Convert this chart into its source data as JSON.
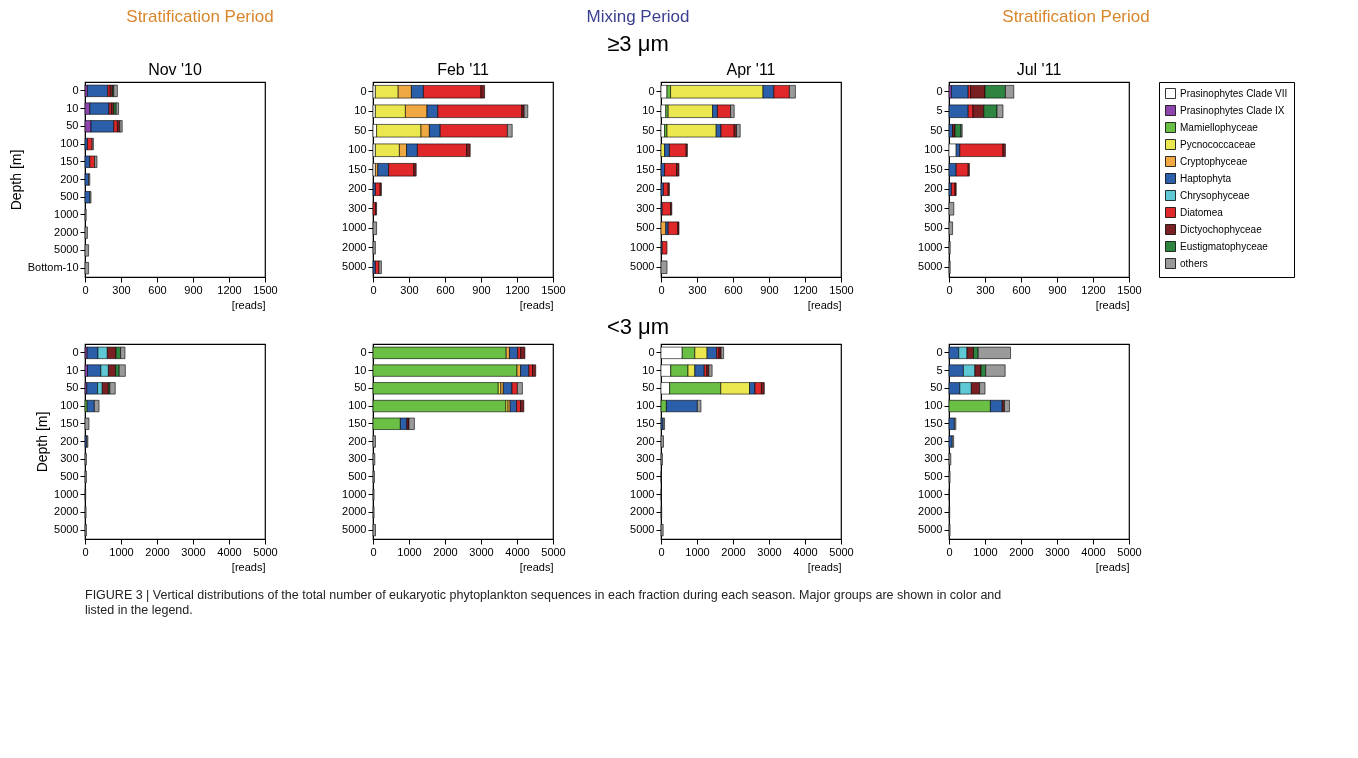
{
  "chart_data": [
    {
      "type": "bar",
      "orientation": "horizontal",
      "stacked": true,
      "title": "Nov '10",
      "annotations": [
        "Stratification Period"
      ],
      "ylabel": "Depth [m]",
      "xlabel": "[reads]",
      "xlim": [
        0,
        1500
      ],
      "xticks": [
        0,
        300,
        600,
        900,
        1200,
        1500
      ],
      "categories": [
        "0",
        "10",
        "50",
        "100",
        "150",
        "200",
        "500",
        "1000",
        "2000",
        "5000",
        "Bottom-10"
      ],
      "series": [
        {
          "color": "#8e44ad",
          "values": [
            20,
            40,
            50,
            0,
            0,
            0,
            0,
            0,
            0,
            0,
            0
          ]
        },
        {
          "color": "#2c5faa",
          "values": [
            170,
            160,
            190,
            20,
            40,
            30,
            40,
            0,
            0,
            0,
            0
          ]
        },
        {
          "color": "#e0282a",
          "values": [
            20,
            20,
            30,
            40,
            40,
            0,
            0,
            0,
            0,
            0,
            0
          ]
        },
        {
          "color": "#7a1f22",
          "values": [
            20,
            20,
            20,
            0,
            0,
            0,
            0,
            0,
            0,
            0,
            0
          ]
        },
        {
          "color": "#2e8540",
          "values": [
            10,
            20,
            0,
            0,
            0,
            0,
            0,
            0,
            0,
            0,
            0
          ]
        },
        {
          "color": "#9a9a9a",
          "values": [
            30,
            20,
            20,
            10,
            20,
            10,
            10,
            10,
            20,
            30,
            30
          ]
        }
      ]
    },
    {
      "type": "bar",
      "orientation": "horizontal",
      "stacked": true,
      "title": "Feb '11",
      "annotations": [
        "Mixing Period"
      ],
      "xlabel": "[reads]",
      "xlim": [
        0,
        1500
      ],
      "xticks": [
        0,
        300,
        600,
        900,
        1200,
        1500
      ],
      "categories": [
        "0",
        "10",
        "50",
        "100",
        "150",
        "200",
        "300",
        "1000",
        "2000",
        "5000"
      ],
      "series": [
        {
          "color": "#ffffff",
          "values": [
            20,
            20,
            30,
            20,
            20,
            0,
            0,
            0,
            0,
            0
          ]
        },
        {
          "color": "#ebe84f",
          "values": [
            190,
            250,
            370,
            200,
            0,
            0,
            0,
            0,
            0,
            0
          ]
        },
        {
          "color": "#f0a843",
          "values": [
            110,
            180,
            70,
            60,
            20,
            0,
            0,
            0,
            0,
            0
          ]
        },
        {
          "color": "#2c5faa",
          "values": [
            100,
            90,
            90,
            90,
            90,
            20,
            0,
            0,
            0,
            20
          ]
        },
        {
          "color": "#e0282a",
          "values": [
            480,
            700,
            560,
            410,
            210,
            40,
            20,
            0,
            0,
            30
          ]
        },
        {
          "color": "#7a1f22",
          "values": [
            30,
            20,
            0,
            30,
            20,
            10,
            10,
            0,
            0,
            0
          ]
        },
        {
          "color": "#9a9a9a",
          "values": [
            0,
            30,
            40,
            0,
            0,
            0,
            0,
            30,
            20,
            20
          ]
        }
      ]
    },
    {
      "type": "bar",
      "orientation": "horizontal",
      "stacked": true,
      "title": "Apr '11",
      "subtitle": "≥3 μm",
      "xlabel": "[reads]",
      "xlim": [
        0,
        1500
      ],
      "xticks": [
        0,
        300,
        600,
        900,
        1200,
        1500
      ],
      "categories": [
        "0",
        "10",
        "50",
        "100",
        "150",
        "200",
        "300",
        "500",
        "1000",
        "5000"
      ],
      "series": [
        {
          "color": "#ffffff",
          "values": [
            50,
            40,
            30,
            0,
            0,
            0,
            0,
            0,
            0,
            0
          ]
        },
        {
          "color": "#6abf45",
          "values": [
            30,
            20,
            20,
            0,
            0,
            0,
            0,
            0,
            0,
            0
          ]
        },
        {
          "color": "#ebe84f",
          "values": [
            770,
            370,
            410,
            30,
            0,
            0,
            0,
            0,
            0,
            0
          ]
        },
        {
          "color": "#f0a843",
          "values": [
            0,
            0,
            0,
            0,
            0,
            0,
            0,
            40,
            0,
            0
          ]
        },
        {
          "color": "#2c5faa",
          "values": [
            90,
            40,
            40,
            40,
            30,
            20,
            10,
            20,
            10,
            0
          ]
        },
        {
          "color": "#e0282a",
          "values": [
            130,
            110,
            110,
            140,
            100,
            40,
            70,
            80,
            40,
            0
          ]
        },
        {
          "color": "#7a1f22",
          "values": [
            0,
            0,
            20,
            10,
            20,
            10,
            10,
            10,
            0,
            0
          ]
        },
        {
          "color": "#9a9a9a",
          "values": [
            50,
            30,
            30,
            0,
            0,
            0,
            0,
            0,
            0,
            50
          ]
        }
      ]
    },
    {
      "type": "bar",
      "orientation": "horizontal",
      "stacked": true,
      "title": "Jul '11",
      "annotations": [
        "Stratification Period"
      ],
      "xlabel": "[reads]",
      "xlim": [
        0,
        1500
      ],
      "xticks": [
        0,
        300,
        600,
        900,
        1200,
        1500
      ],
      "legend": "right",
      "categories": [
        "0",
        "5",
        "50",
        "100",
        "150",
        "200",
        "300",
        "500",
        "1000",
        "5000"
      ],
      "series": [
        {
          "name": "Prasinophytes Clade VII",
          "color": "#ffffff",
          "values": [
            0,
            0,
            0,
            60,
            0,
            0,
            0,
            0,
            0,
            0
          ]
        },
        {
          "name": "Prasinophytes Clade IX",
          "color": "#8e44ad",
          "values": [
            20,
            0,
            0,
            0,
            0,
            0,
            0,
            0,
            0,
            0
          ]
        },
        {
          "name": "Mamiellophyceae",
          "color": "#6abf45",
          "values": [
            0,
            0,
            0,
            0,
            0,
            0,
            0,
            0,
            0,
            0
          ]
        },
        {
          "name": "Pycnococcaceae",
          "color": "#ebe84f",
          "values": [
            0,
            0,
            0,
            0,
            0,
            0,
            0,
            0,
            0,
            0
          ]
        },
        {
          "name": "Cryptophyceae",
          "color": "#f0a843",
          "values": [
            0,
            0,
            0,
            0,
            0,
            0,
            0,
            0,
            0,
            0
          ]
        },
        {
          "name": "Haptophyta",
          "color": "#2c5faa",
          "values": [
            140,
            160,
            30,
            30,
            60,
            20,
            0,
            0,
            0,
            0
          ]
        },
        {
          "name": "Chrysophyceae",
          "color": "#5fc8d4",
          "values": [
            0,
            0,
            0,
            0,
            0,
            0,
            0,
            0,
            0,
            0
          ]
        },
        {
          "name": "Diatomea",
          "color": "#e0282a",
          "values": [
            20,
            40,
            0,
            360,
            100,
            30,
            0,
            0,
            0,
            0
          ]
        },
        {
          "name": "Dictyochophyceae",
          "color": "#7a1f22",
          "values": [
            120,
            90,
            20,
            20,
            10,
            10,
            0,
            0,
            0,
            0
          ]
        },
        {
          "name": "Eustigmatophyceae",
          "color": "#2e8540",
          "values": [
            170,
            110,
            50,
            0,
            0,
            0,
            0,
            0,
            0,
            0
          ]
        },
        {
          "name": "others",
          "color": "#9a9a9a",
          "values": [
            70,
            50,
            10,
            0,
            0,
            0,
            40,
            30,
            10,
            10
          ]
        }
      ]
    },
    {
      "type": "bar",
      "orientation": "horizontal",
      "stacked": true,
      "ylabel": "Depth [m]",
      "xlabel": "[reads]",
      "xlim": [
        0,
        5000
      ],
      "xticks": [
        0,
        1000,
        2000,
        3000,
        4000,
        5000
      ],
      "categories": [
        "0",
        "10",
        "50",
        "100",
        "150",
        "200",
        "300",
        "500",
        "1000",
        "2000",
        "5000"
      ],
      "series": [
        {
          "color": "#ffffff",
          "values": [
            0,
            0,
            0,
            null,
            0,
            0,
            0,
            0,
            0,
            0,
            0
          ]
        },
        {
          "color": "#8e44ad",
          "values": [
            60,
            70,
            50,
            0,
            0,
            0,
            0,
            0,
            0,
            0,
            0
          ]
        },
        {
          "color": "#6abf45",
          "values": [
            0,
            0,
            0,
            60,
            0,
            0,
            0,
            0,
            0,
            0,
            0
          ]
        },
        {
          "color": "#2c5faa",
          "values": [
            300,
            370,
            300,
            200,
            0,
            50,
            0,
            0,
            0,
            0,
            0
          ]
        },
        {
          "color": "#5fc8d4",
          "values": [
            260,
            210,
            130,
            0,
            0,
            0,
            0,
            0,
            0,
            0,
            0
          ]
        },
        {
          "color": "#7a1f22",
          "values": [
            240,
            200,
            170,
            0,
            0,
            0,
            0,
            0,
            0,
            0,
            0
          ]
        },
        {
          "color": "#2e8540",
          "values": [
            130,
            100,
            40,
            0,
            0,
            0,
            0,
            0,
            0,
            0,
            0
          ]
        },
        {
          "color": "#9a9a9a",
          "values": [
            120,
            170,
            150,
            130,
            110,
            30,
            40,
            40,
            20,
            30,
            40
          ]
        }
      ]
    },
    {
      "type": "bar",
      "orientation": "horizontal",
      "stacked": true,
      "xlabel": "[reads]",
      "xlim": [
        0,
        5000
      ],
      "xticks": [
        0,
        1000,
        2000,
        3000,
        4000,
        5000
      ],
      "categories": [
        "0",
        "10",
        "50",
        "100",
        "150",
        "200",
        "300",
        "500",
        "1000",
        "2000",
        "5000"
      ],
      "series": [
        {
          "color": "#6abf45",
          "values": [
            3700,
            4000,
            3480,
            3690,
            760,
            0,
            0,
            0,
            0,
            0,
            0
          ]
        },
        {
          "color": "#ebe84f",
          "values": [
            0,
            0,
            70,
            60,
            0,
            0,
            0,
            0,
            0,
            0,
            0
          ]
        },
        {
          "color": "#f0a843",
          "values": [
            90,
            100,
            70,
            60,
            0,
            0,
            0,
            0,
            0,
            0,
            0
          ]
        },
        {
          "color": "#2c5faa",
          "values": [
            230,
            230,
            240,
            180,
            180,
            0,
            0,
            0,
            0,
            0,
            0
          ]
        },
        {
          "color": "#e0282a",
          "values": [
            80,
            100,
            150,
            110,
            0,
            0,
            0,
            0,
            0,
            0,
            0
          ]
        },
        {
          "color": "#7a1f22",
          "values": [
            120,
            90,
            0,
            90,
            60,
            0,
            0,
            0,
            0,
            0,
            0
          ]
        },
        {
          "color": "#9a9a9a",
          "values": [
            0,
            0,
            140,
            0,
            150,
            70,
            50,
            40,
            30,
            30,
            70
          ]
        }
      ]
    },
    {
      "type": "bar",
      "orientation": "horizontal",
      "stacked": true,
      "xlabel": "[reads]",
      "xlim": [
        0,
        5000
      ],
      "xticks": [
        0,
        1000,
        2000,
        3000,
        4000,
        5000
      ],
      "subtitle": "<3 μm",
      "categories": [
        "0",
        "10",
        "50",
        "100",
        "150",
        "200",
        "300",
        "500",
        "1000",
        "2000",
        "5000"
      ],
      "series": [
        {
          "color": "#ffffff",
          "values": [
            590,
            270,
            240,
            0,
            0,
            0,
            0,
            0,
            0,
            0,
            0
          ]
        },
        {
          "color": "#6abf45",
          "values": [
            350,
            480,
            1420,
            150,
            0,
            0,
            0,
            0,
            0,
            0,
            0
          ]
        },
        {
          "color": "#ebe84f",
          "values": [
            340,
            190,
            800,
            0,
            0,
            0,
            0,
            0,
            0,
            0,
            0
          ]
        },
        {
          "color": "#2c5faa",
          "values": [
            270,
            260,
            150,
            860,
            60,
            0,
            0,
            0,
            0,
            0,
            0
          ]
        },
        {
          "color": "#e0282a",
          "values": [
            60,
            70,
            180,
            0,
            0,
            0,
            0,
            0,
            0,
            0,
            0
          ]
        },
        {
          "color": "#7a1f22",
          "values": [
            60,
            60,
            80,
            0,
            0,
            0,
            0,
            0,
            0,
            0,
            0
          ]
        },
        {
          "color": "#9a9a9a",
          "values": [
            70,
            90,
            0,
            100,
            40,
            70,
            40,
            10,
            10,
            20,
            60
          ]
        }
      ]
    },
    {
      "type": "bar",
      "orientation": "horizontal",
      "stacked": true,
      "xlabel": "[reads]",
      "xlim": [
        0,
        5000
      ],
      "xticks": [
        0,
        1000,
        2000,
        3000,
        4000,
        5000
      ],
      "annotations": [
        "FIGURE 3 | Vertical distributions of the total number of eukaryotic phytoplankton sequences in each fraction during each season. Major groups are shown in color and listed in the legend."
      ],
      "categories": [
        "0",
        "5",
        "50",
        "100",
        "150",
        "200",
        "300",
        "500",
        "1000",
        "2000",
        "5000"
      ],
      "series": [
        {
          "color": "#6abf45",
          "values": [
            0,
            0,
            0,
            1150,
            0,
            0,
            0,
            0,
            0,
            0,
            0
          ]
        },
        {
          "color": "#2c5faa",
          "values": [
            270,
            400,
            300,
            330,
            150,
            90,
            0,
            0,
            0,
            0,
            0
          ]
        },
        {
          "color": "#5fc8d4",
          "values": [
            230,
            320,
            320,
            0,
            0,
            0,
            0,
            0,
            0,
            0,
            0
          ]
        },
        {
          "color": "#7a1f22",
          "values": [
            180,
            170,
            230,
            60,
            0,
            0,
            0,
            0,
            0,
            0,
            0
          ]
        },
        {
          "color": "#2e8540",
          "values": [
            130,
            130,
            0,
            0,
            0,
            0,
            0,
            0,
            0,
            0,
            0
          ]
        },
        {
          "color": "#9a9a9a",
          "values": [
            900,
            540,
            150,
            140,
            40,
            40,
            50,
            30,
            10,
            20,
            30
          ]
        }
      ]
    }
  ]
}
